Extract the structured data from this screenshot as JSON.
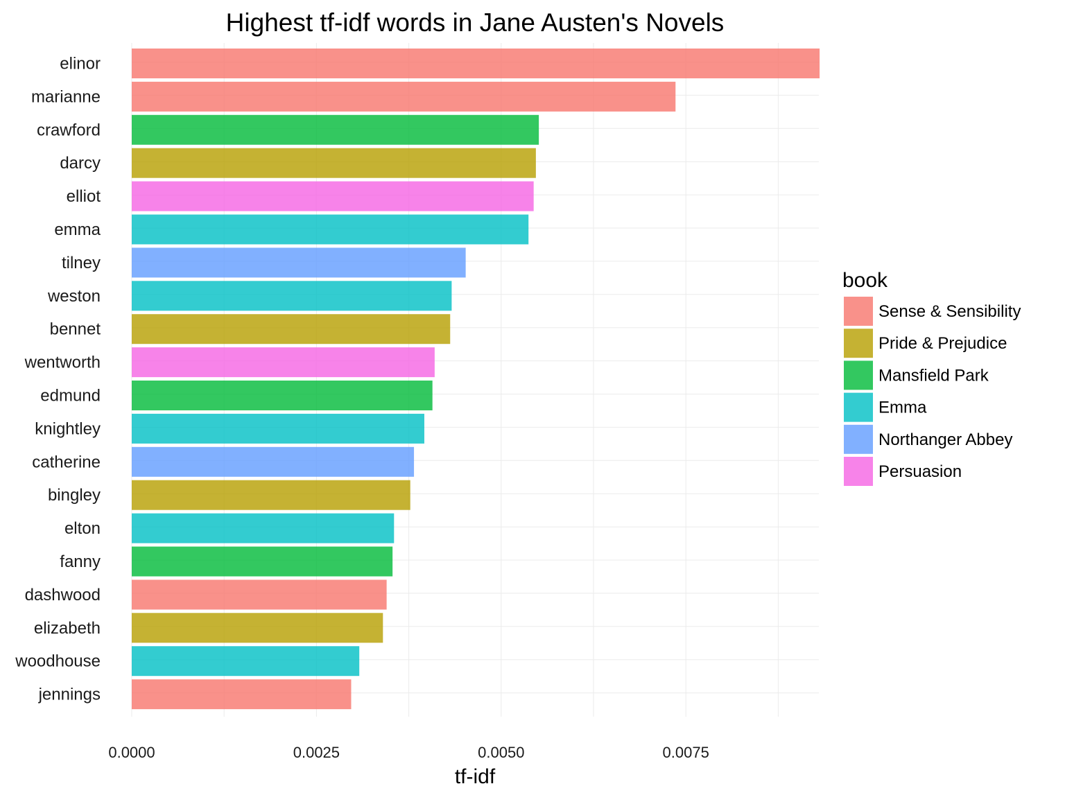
{
  "chart_data": {
    "type": "bar",
    "orientation": "horizontal",
    "title": "Highest tf-idf words in Jane Austen's Novels",
    "xlabel": "tf-idf",
    "ylabel": "",
    "xlim": [
      0,
      0.0093
    ],
    "x_ticks": [
      "0.0000",
      "0.0025",
      "0.0050",
      "0.0075"
    ],
    "x_tick_values": [
      0,
      0.0025,
      0.005,
      0.0075
    ],
    "grid": true,
    "legend": {
      "title": "book",
      "placement": "right",
      "entries": [
        {
          "name": "Sense & Sensibility",
          "color": "#F8766D"
        },
        {
          "name": "Pride & Prejudice",
          "color": "#B79F00"
        },
        {
          "name": "Mansfield Park",
          "color": "#00BA38"
        },
        {
          "name": "Emma",
          "color": "#00BFC4"
        },
        {
          "name": "Northanger Abbey",
          "color": "#619CFF"
        },
        {
          "name": "Persuasion",
          "color": "#F564E3"
        }
      ]
    },
    "bars": [
      {
        "word": "elinor",
        "value": 0.00931,
        "book": "Sense & Sensibility"
      },
      {
        "word": "marianne",
        "value": 0.00736,
        "book": "Sense & Sensibility"
      },
      {
        "word": "crawford",
        "value": 0.00551,
        "book": "Mansfield Park"
      },
      {
        "word": "darcy",
        "value": 0.00547,
        "book": "Pride & Prejudice"
      },
      {
        "word": "elliot",
        "value": 0.00544,
        "book": "Persuasion"
      },
      {
        "word": "emma",
        "value": 0.00537,
        "book": "Emma"
      },
      {
        "word": "tilney",
        "value": 0.00452,
        "book": "Northanger Abbey"
      },
      {
        "word": "weston",
        "value": 0.00433,
        "book": "Emma"
      },
      {
        "word": "bennet",
        "value": 0.00431,
        "book": "Pride & Prejudice"
      },
      {
        "word": "wentworth",
        "value": 0.0041,
        "book": "Persuasion"
      },
      {
        "word": "edmund",
        "value": 0.00407,
        "book": "Mansfield Park"
      },
      {
        "word": "knightley",
        "value": 0.00396,
        "book": "Emma"
      },
      {
        "word": "catherine",
        "value": 0.00382,
        "book": "Northanger Abbey"
      },
      {
        "word": "bingley",
        "value": 0.00377,
        "book": "Pride & Prejudice"
      },
      {
        "word": "elton",
        "value": 0.00355,
        "book": "Emma"
      },
      {
        "word": "fanny",
        "value": 0.00353,
        "book": "Mansfield Park"
      },
      {
        "word": "dashwood",
        "value": 0.00345,
        "book": "Sense & Sensibility"
      },
      {
        "word": "elizabeth",
        "value": 0.0034,
        "book": "Pride & Prejudice"
      },
      {
        "word": "woodhouse",
        "value": 0.00308,
        "book": "Emma"
      },
      {
        "word": "jennings",
        "value": 0.00297,
        "book": "Sense & Sensibility"
      }
    ]
  }
}
